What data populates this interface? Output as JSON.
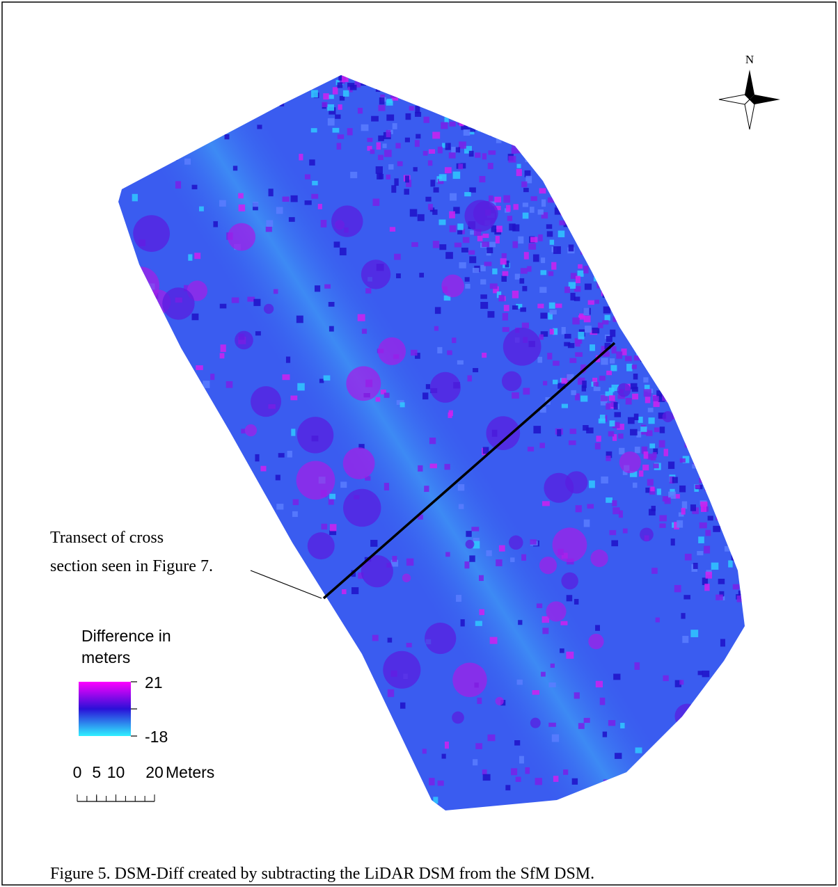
{
  "north_arrow": {
    "label": "N"
  },
  "annotation": "Transect of cross section seen in Figure 7.",
  "legend": {
    "title": "Difference in meters",
    "max": 21,
    "min": -18
  },
  "scale_bar": {
    "ticks": [
      0,
      5,
      10,
      20
    ],
    "unit": "Meters"
  },
  "caption": "Figure 5. DSM-Diff created by subtracting the LiDAR DSM from the SfM DSM."
}
